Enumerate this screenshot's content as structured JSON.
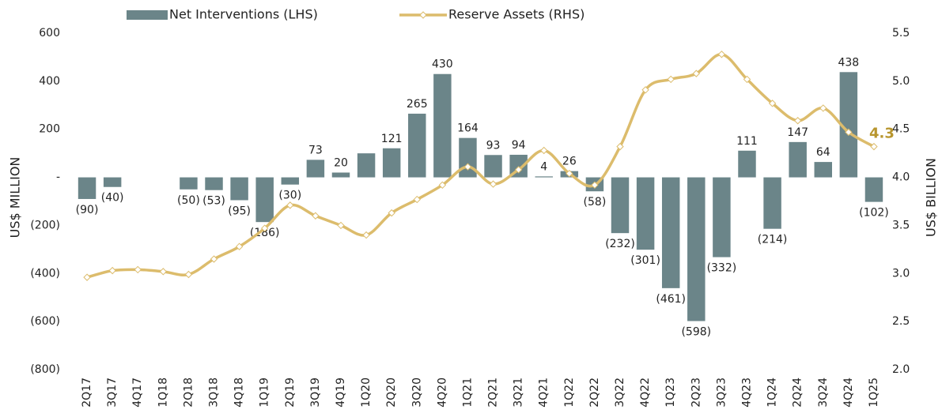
{
  "chart_data": {
    "type": "bar-line",
    "categories": [
      "2Q17",
      "3Q17",
      "4Q17",
      "1Q18",
      "2Q18",
      "3Q18",
      "4Q18",
      "1Q19",
      "2Q19",
      "3Q19",
      "4Q19",
      "1Q20",
      "2Q20",
      "3Q20",
      "4Q20",
      "1Q21",
      "2Q21",
      "3Q21",
      "4Q21",
      "1Q22",
      "2Q22",
      "3Q22",
      "4Q22",
      "1Q23",
      "2Q23",
      "3Q23",
      "4Q23",
      "1Q24",
      "2Q24",
      "3Q24",
      "4Q24",
      "1Q25"
    ],
    "series": [
      {
        "name": "Net Interventions (LHS)",
        "color": "#6b8589",
        "type": "bar",
        "values": [
          -90,
          -40,
          null,
          null,
          -50,
          -53,
          -95,
          -186,
          -30,
          73,
          20,
          100,
          121,
          265,
          430,
          164,
          93,
          94,
          4,
          26,
          -58,
          -232,
          -301,
          -461,
          -598,
          -332,
          111,
          -214,
          147,
          64,
          438,
          -102
        ],
        "value_labels": [
          "(90)",
          "(40)",
          null,
          null,
          "(50)",
          "(53)",
          "(95)",
          "(186)",
          "(30)",
          "73",
          "20",
          null,
          "121",
          "265",
          "430",
          "164",
          "93",
          "94",
          "4",
          "26",
          "(58)",
          "(232)",
          "(301)",
          "(461)",
          "(598)",
          "(332)",
          "111",
          "(214)",
          "147",
          "64",
          "438",
          "(102)"
        ]
      },
      {
        "name": "Reserve Assets (RHS)",
        "color": "#dcbc6c",
        "type": "line",
        "axis": "y2",
        "values": [
          2.96,
          3.03,
          3.04,
          3.02,
          2.99,
          3.15,
          3.28,
          3.47,
          3.71,
          3.6,
          3.5,
          3.4,
          3.63,
          3.77,
          3.92,
          4.11,
          3.93,
          4.08,
          4.28,
          4.04,
          3.92,
          4.32,
          4.91,
          5.02,
          5.08,
          5.28,
          5.02,
          4.77,
          4.59,
          4.72,
          4.47,
          4.32
        ]
      }
    ],
    "annotation": {
      "text": "4.3",
      "color": "#b8962e"
    },
    "ylabel": "US$ MILLION",
    "y2label": "US$ BILLION",
    "ylim": [
      -800,
      600
    ],
    "yticks": [
      {
        "value": -800,
        "label": "(800)"
      },
      {
        "value": -600,
        "label": "(600)"
      },
      {
        "value": -400,
        "label": "(400)"
      },
      {
        "value": -200,
        "label": "(200)"
      },
      {
        "value": 0,
        "label": "-"
      },
      200,
      400,
      600
    ],
    "y2lim": [
      2,
      5.5
    ],
    "y2ticks": [
      {
        "value": 2,
        "label": "2.0"
      },
      2.5,
      {
        "value": 3,
        "label": "3.0"
      },
      3.5,
      {
        "value": 4,
        "label": "4.0"
      },
      4.5,
      {
        "value": 5,
        "label": "5.0"
      },
      5.5
    ]
  }
}
